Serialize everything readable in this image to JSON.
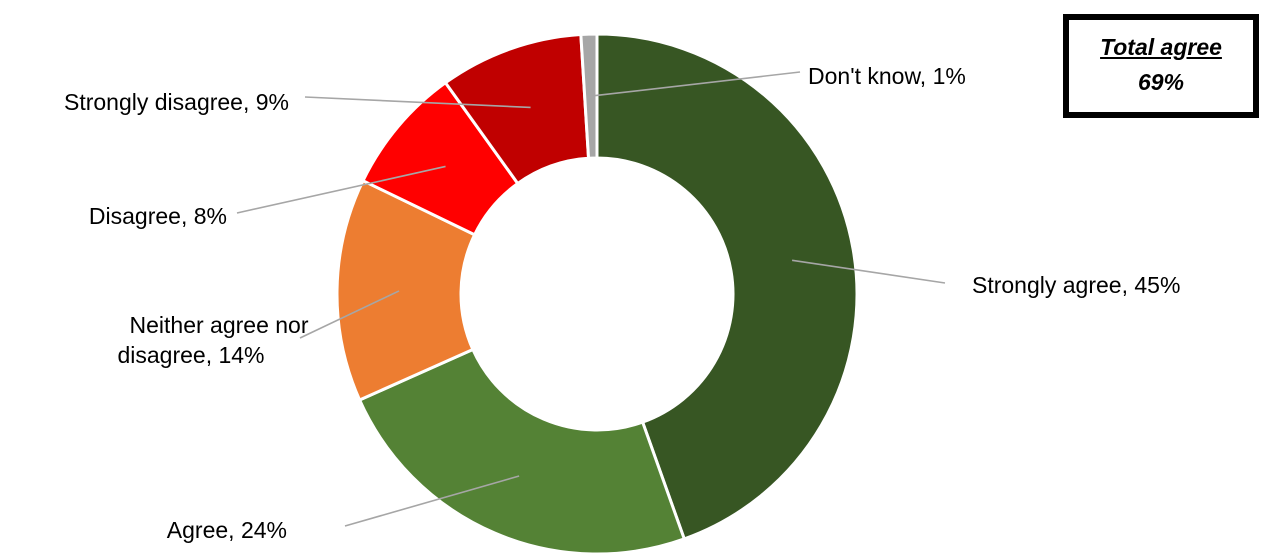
{
  "chart_data": {
    "type": "pie",
    "variant": "doughnut",
    "title": "",
    "slices": [
      {
        "label": "Strongly agree",
        "value": 45,
        "display": "Strongly agree, 45%",
        "color": "#375623"
      },
      {
        "label": "Agree",
        "value": 24,
        "display": "Agree, 24%",
        "color": "#548235"
      },
      {
        "label": "Neither agree nor disagree",
        "value": 14,
        "display": "Neither agree nor disagree, 14%",
        "display_lines": [
          "Neither agree nor",
          "disagree, 14%"
        ],
        "color": "#ED7D31"
      },
      {
        "label": "Disagree",
        "value": 8,
        "display": "Disagree, 8%",
        "color": "#FF0000"
      },
      {
        "label": "Strongly disagree",
        "value": 9,
        "display": "Strongly disagree, 9%",
        "color": "#C00000"
      },
      {
        "label": "Don't know",
        "value": 1,
        "display": "Don't know, 1%",
        "color": "#A6A6A6"
      }
    ],
    "legend": "none",
    "data_labels": "outside with leader lines"
  },
  "summary_box": {
    "title": "Total agree",
    "value": "69%"
  }
}
